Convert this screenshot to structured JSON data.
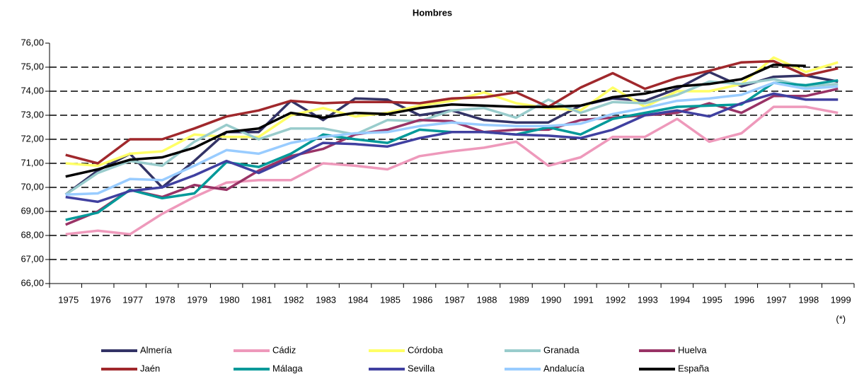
{
  "chart_data": {
    "type": "line",
    "title": "Hombres",
    "categories": [
      "1975",
      "1976",
      "1977",
      "1978",
      "1979",
      "1980",
      "1981",
      "1982",
      "1983",
      "1984",
      "1985",
      "1986",
      "1987",
      "1988",
      "1989",
      "1990",
      "1991",
      "1992",
      "1993",
      "1994",
      "1995",
      "1996",
      "1997",
      "1998",
      "1999"
    ],
    "annotations": [
      "(*)"
    ],
    "ylim": [
      66,
      76
    ],
    "yticks": [
      {
        "value": 66,
        "label": "66,00"
      },
      {
        "value": 67,
        "label": "67,00"
      },
      {
        "value": 68,
        "label": "68,00"
      },
      {
        "value": 69,
        "label": "69,00"
      },
      {
        "value": 70,
        "label": "70,00"
      },
      {
        "value": 71,
        "label": "71,00"
      },
      {
        "value": 72,
        "label": "72,00"
      },
      {
        "value": 73,
        "label": "73,00"
      },
      {
        "value": 74,
        "label": "74,00"
      },
      {
        "value": 75,
        "label": "75,00"
      },
      {
        "value": 76,
        "label": "76,00"
      }
    ],
    "grid": true,
    "legend": "bottom",
    "series": [
      {
        "name": "Almería",
        "color": "#333366",
        "values": [
          69.7,
          70.7,
          71.4,
          70.0,
          71.1,
          72.3,
          72.3,
          73.6,
          72.8,
          73.7,
          73.65,
          73.0,
          73.2,
          72.8,
          72.7,
          72.7,
          73.4,
          73.7,
          73.6,
          74.1,
          74.8,
          74.2,
          74.6,
          74.65,
          74.4
        ]
      },
      {
        "name": "Cádiz",
        "color": "#ee99bb",
        "values": [
          68.05,
          68.2,
          68.05,
          68.9,
          69.6,
          70.2,
          70.3,
          70.3,
          71.0,
          70.9,
          70.75,
          71.3,
          71.5,
          71.65,
          71.9,
          70.9,
          71.25,
          72.1,
          72.1,
          72.85,
          71.9,
          72.25,
          73.35,
          73.35,
          73.1
        ]
      },
      {
        "name": "Córdoba",
        "color": "#ffff66",
        "values": [
          71.0,
          70.9,
          71.4,
          71.5,
          72.2,
          72.1,
          72.1,
          73.0,
          73.3,
          72.95,
          73.1,
          73.4,
          73.6,
          73.95,
          73.5,
          73.3,
          73.2,
          74.15,
          73.35,
          74.0,
          74.0,
          74.3,
          75.4,
          74.8,
          75.2
        ]
      },
      {
        "name": "Granada",
        "color": "#99cccc",
        "values": [
          69.7,
          70.6,
          71.1,
          70.9,
          71.9,
          72.6,
          72.0,
          72.45,
          72.45,
          72.2,
          72.8,
          72.75,
          73.2,
          73.3,
          72.9,
          73.65,
          73.1,
          73.55,
          73.5,
          73.85,
          74.4,
          74.3,
          74.5,
          74.2,
          74.3
        ]
      },
      {
        "name": "Huelva",
        "color": "#993366",
        "values": [
          68.45,
          69.0,
          69.9,
          69.6,
          70.1,
          69.9,
          70.7,
          71.3,
          71.6,
          72.2,
          72.4,
          72.8,
          72.75,
          72.3,
          72.4,
          72.4,
          72.8,
          72.9,
          73.0,
          73.1,
          73.5,
          73.1,
          73.8,
          73.8,
          74.1
        ]
      },
      {
        "name": "Jaén",
        "color": "#a0282c",
        "values": [
          71.35,
          71.0,
          72.0,
          72.0,
          72.45,
          72.95,
          73.2,
          73.6,
          73.5,
          73.55,
          73.55,
          73.5,
          73.7,
          73.75,
          73.95,
          73.35,
          74.15,
          74.75,
          74.1,
          74.55,
          74.85,
          75.2,
          75.25,
          74.65,
          74.95
        ]
      },
      {
        "name": "Málaga",
        "color": "#009999",
        "values": [
          68.65,
          68.95,
          69.9,
          69.55,
          69.75,
          71.05,
          70.85,
          71.4,
          72.2,
          72.0,
          71.85,
          72.4,
          72.3,
          72.3,
          72.2,
          72.5,
          72.2,
          72.85,
          73.1,
          73.35,
          73.4,
          73.45,
          74.35,
          74.25,
          74.45
        ]
      },
      {
        "name": "Sevilla",
        "color": "#4040a0",
        "values": [
          69.6,
          69.4,
          69.85,
          70.0,
          70.5,
          71.1,
          70.6,
          71.2,
          71.85,
          71.8,
          71.7,
          72.05,
          72.3,
          72.3,
          72.2,
          72.15,
          72.05,
          72.4,
          73.0,
          73.2,
          72.95,
          73.5,
          73.9,
          73.65,
          73.65
        ]
      },
      {
        "name": "Andalucía",
        "color": "#99ccff",
        "values": [
          69.7,
          69.75,
          70.35,
          70.3,
          70.9,
          71.55,
          71.4,
          71.85,
          72.1,
          72.25,
          72.3,
          72.55,
          72.7,
          72.6,
          72.55,
          72.55,
          72.65,
          73.05,
          73.3,
          73.6,
          73.7,
          73.85,
          74.35,
          74.1,
          74.2
        ]
      },
      {
        "name": "España",
        "color": "#000000",
        "values": [
          70.45,
          70.75,
          71.15,
          71.25,
          71.65,
          72.3,
          72.45,
          73.1,
          72.9,
          73.1,
          73.05,
          73.3,
          73.45,
          73.4,
          73.35,
          73.35,
          73.4,
          73.75,
          73.9,
          74.2,
          74.3,
          74.5,
          75.1,
          75.05,
          null
        ]
      }
    ]
  }
}
